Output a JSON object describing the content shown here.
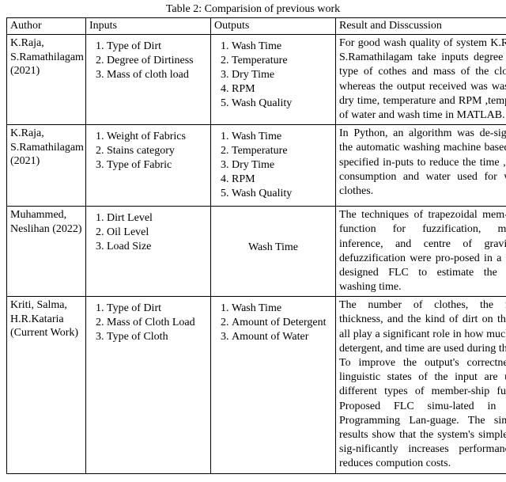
{
  "caption": "Table 2: Comparision of previous work",
  "headers": {
    "author": "Author",
    "inputs": "Inputs",
    "outputs": "Outputs",
    "result": "Result and Disscussion"
  },
  "rows": [
    {
      "author": "K.Raja, S.Ramathilagam (2021)",
      "inputs": [
        "Type of Dirt",
        "Degree of Dirtiness",
        "Mass of cloth load"
      ],
      "outputs": [
        "Wash Time",
        "Temperature",
        "Dry Time",
        "RPM",
        "Wash Quality"
      ],
      "outputs_centered": false,
      "result": "For good wash quality of system K.Raja and S.Ramathilagam take inputs degree of dirt, type of cothes and mass of the cloth load whereas the output received was wash time, dry time, temperature and RPM ,temperature of water and wash time in MATLAB."
    },
    {
      "author": "K.Raja, S.Ramathilagam (2021)",
      "inputs": [
        "Weight of Fabrics",
        "Stains category",
        "Type of Fabric"
      ],
      "outputs": [
        "Wash Time",
        "Temperature",
        "Dry Time",
        "RPM",
        "Wash Quality"
      ],
      "outputs_centered": false,
      "result": "In Python, an algorithm was de-signed for the automatic washing machine based on the specified in-puts to reduce the time , current consumption and water used for washing clothes."
    },
    {
      "author": "Muhammed, Neslihan (2022)",
      "inputs": [
        "Dirt Level",
        "Oil Level",
        "Load Size"
      ],
      "outputs": [
        "Wash Time"
      ],
      "outputs_centered": true,
      "result": "The techniques of trapezoidal mem-bership function for fuzzification, minimum inference, and centre of gravity for defuzzification were pro-posed in a Python-designed FLC to estimate the optimal washing time."
    },
    {
      "author": "Kriti, Salma, H.R.Kataria (Current Work)",
      "inputs": [
        "Type of Dirt",
        "Mass of Cloth Load",
        "Type of Cloth"
      ],
      "outputs": [
        "Wash Time",
        "Amount of Detergent",
        "Amount of Water"
      ],
      "outputs_centered": false,
      "result": "The number of clothes, the fab-ric's thickness, and the kind of dirt on the fabric all play a significant role in how much water, detergent, and time are used during the wash. To improve the output's correctness, the linguistic states of the input are used as different types of member-ship functions. Proposed FLC simu-lated in Python Programming Lan-guage. The simulation results show that the system's simple design sig-nificantly increases performance and reduces compution costs."
    }
  ]
}
